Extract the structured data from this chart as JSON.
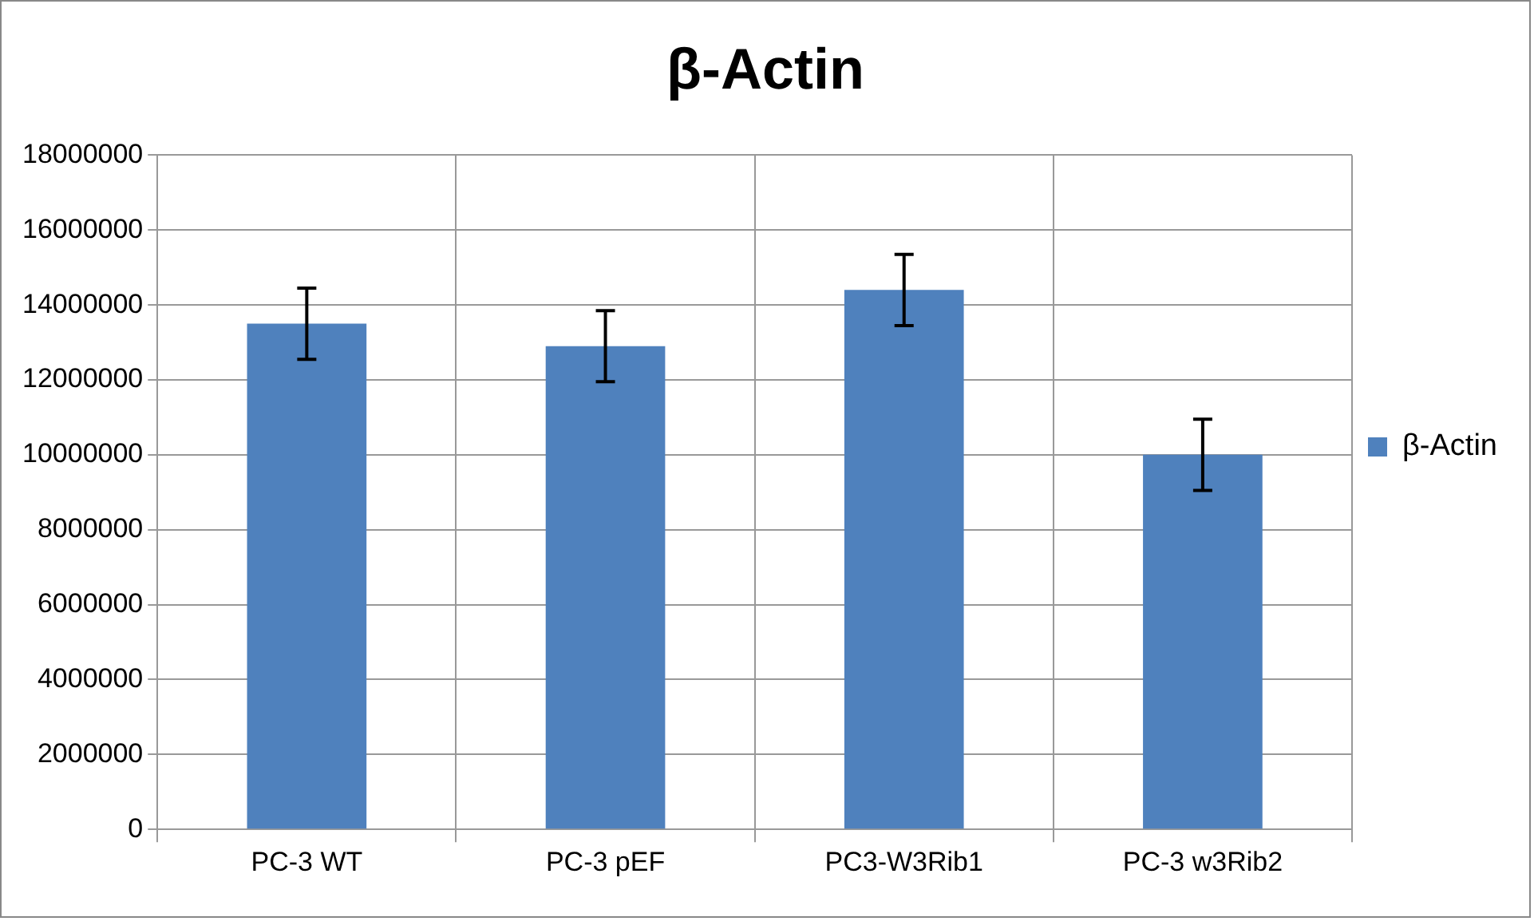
{
  "chart_data": {
    "type": "bar",
    "title": "β-Actin",
    "categories": [
      "PC-3 WT",
      "PC-3 pEF",
      "PC3-W3Rib1",
      "PC-3 w3Rib2"
    ],
    "series": [
      {
        "name": "β-Actin",
        "color": "#4f81bd",
        "values": [
          13500000,
          12900000,
          14400000,
          10000000
        ],
        "errors": [
          950000,
          950000,
          950000,
          950000
        ]
      }
    ],
    "ylim": [
      0,
      18000000
    ],
    "yticks": [
      0,
      2000000,
      4000000,
      6000000,
      8000000,
      10000000,
      12000000,
      14000000,
      16000000,
      18000000
    ],
    "grid": true,
    "legend": "right"
  }
}
